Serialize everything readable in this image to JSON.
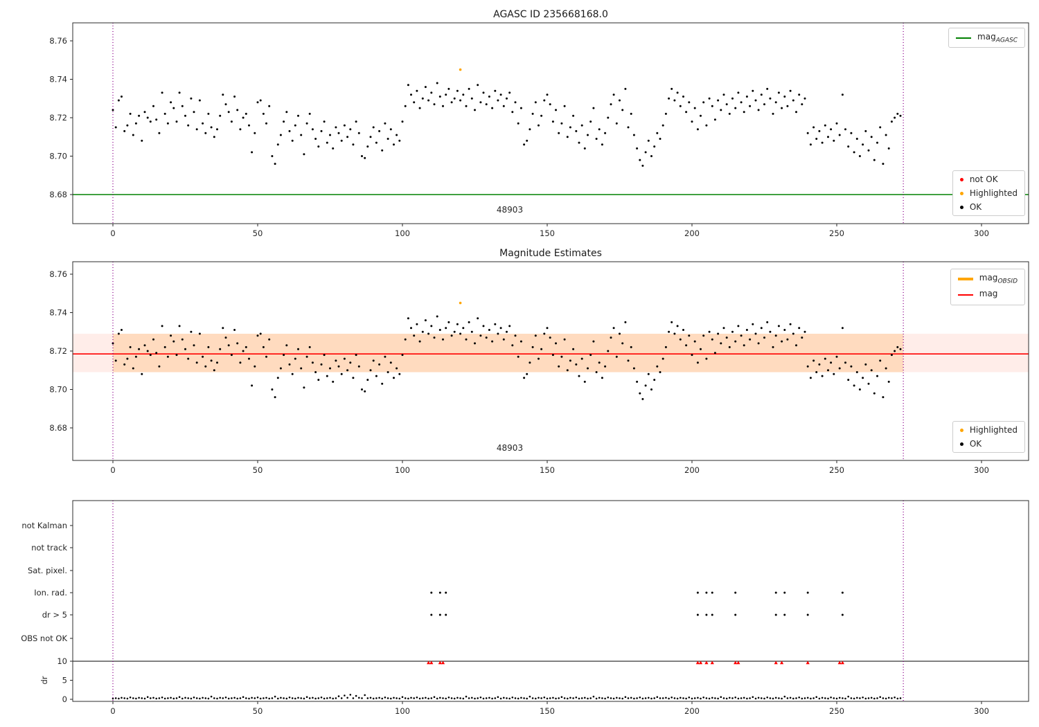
{
  "figure": {
    "plot1_title": "AGASC ID 235668168.0",
    "plot2_title": "Magnitude Estimates",
    "obsid_label": "48903"
  },
  "plot1": {
    "legend_mag": {
      "main": "mag",
      "sub": "AGASC",
      "color": "#008000"
    },
    "status_legend": [
      {
        "label": "not OK",
        "color": "#ff0000"
      },
      {
        "label": "Highlighted",
        "color": "#ffa500"
      },
      {
        "label": "OK",
        "color": "#000000"
      }
    ]
  },
  "plot2": {
    "line_legend": [
      {
        "main": "mag",
        "sub": "OBSID",
        "color": "#ffa500",
        "thick": true
      },
      {
        "main": "mag",
        "sub": "",
        "color": "#ff0000",
        "thick": false
      }
    ],
    "status_legend": [
      {
        "label": "Highlighted",
        "color": "#ffa500"
      },
      {
        "label": "OK",
        "color": "#000000"
      }
    ]
  },
  "chart_data": {
    "type": "scatter",
    "title": "AGASC ID 235668168.0",
    "subplot2_title": "Magnitude Estimates",
    "obsid": "48903",
    "xticks": [
      0,
      50,
      100,
      150,
      200,
      250,
      300
    ],
    "xlim": [
      -14,
      316
    ],
    "mag_yticks": [
      8.76,
      8.74,
      8.72,
      8.7,
      8.68
    ],
    "mag_ylim": [
      8.665,
      8.77
    ],
    "mag_base": 8.72,
    "x_start": 0,
    "x_step": 1,
    "mag_agasc": 8.68,
    "mag_mean": 8.7185,
    "mag_err_band": [
      8.709,
      8.729
    ],
    "obsid_range": [
      0,
      273
    ],
    "highlighted": {
      "x": 120,
      "mag": 8.745
    },
    "mag_offsets_milli": [
      4,
      -5,
      9,
      11,
      -7,
      -4,
      2,
      -9,
      -3,
      1,
      -12,
      3,
      0,
      -2,
      6,
      -1,
      -8,
      13,
      2,
      -3,
      8,
      5,
      -2,
      13,
      6,
      1,
      -4,
      10,
      3,
      -6,
      9,
      -3,
      -8,
      2,
      -5,
      -10,
      -6,
      1,
      12,
      7,
      3,
      -2,
      11,
      4,
      -6,
      0,
      2,
      -4,
      -18,
      -8,
      8,
      9,
      2,
      -3,
      6,
      -20,
      -24,
      -14,
      -9,
      -2,
      3,
      -7,
      -12,
      -4,
      1,
      -9,
      -19,
      -3,
      2,
      -6,
      -11,
      -15,
      -7,
      -2,
      -13,
      -9,
      -16,
      -5,
      -8,
      -12,
      -4,
      -10,
      -6,
      -14,
      -2,
      -8,
      -20,
      -21,
      -15,
      -10,
      -5,
      -13,
      -7,
      -17,
      -3,
      -11,
      -6,
      -14,
      -9,
      -12,
      -2,
      6,
      17,
      12,
      8,
      14,
      5,
      10,
      16,
      9,
      13,
      7,
      18,
      11,
      6,
      12,
      15,
      8,
      10,
      14,
      9,
      12,
      6,
      15,
      10,
      4,
      17,
      8,
      13,
      7,
      11,
      5,
      14,
      9,
      12,
      6,
      10,
      13,
      3,
      8,
      -3,
      5,
      -14,
      -12,
      -6,
      2,
      8,
      -4,
      1,
      9,
      12,
      7,
      -2,
      4,
      -8,
      -3,
      6,
      -10,
      -5,
      1,
      -7,
      -13,
      -4,
      -16,
      -9,
      -2,
      5,
      -11,
      -6,
      -14,
      -8,
      0,
      7,
      12,
      -3,
      9,
      4,
      15,
      -5,
      2,
      -9,
      -16,
      -22,
      -25,
      -18,
      -12,
      -20,
      -15,
      -8,
      -11,
      -4,
      2,
      10,
      15,
      9,
      13,
      6,
      11,
      3,
      8,
      -2,
      5,
      -6,
      1,
      8,
      -4,
      10,
      6,
      -1,
      9,
      4,
      12,
      7,
      2,
      10,
      5,
      13,
      8,
      3,
      11,
      6,
      14,
      9,
      4,
      12,
      7,
      15,
      10,
      2,
      8,
      13,
      5,
      11,
      6,
      14,
      9,
      3,
      12,
      7,
      10,
      -8,
      -14,
      -5,
      -11,
      -7,
      -13,
      -4,
      -10,
      -6,
      -12,
      -3,
      -9,
      12,
      -6,
      -15,
      -8,
      -18,
      -11,
      -20,
      -14,
      -7,
      -17,
      -10,
      -22,
      -13,
      -5,
      -24,
      -9,
      -16,
      -2,
      0,
      2,
      1
    ],
    "flag_categories": [
      "not Kalman",
      "not track",
      "Sat. pixel.",
      "Ion. rad.",
      "dr > 5",
      "OBS not OK"
    ],
    "dr_yticks": [
      10,
      5,
      0
    ],
    "dr_ylabel": "dr",
    "flags": {
      "ion_rad": [
        110,
        113,
        115,
        202,
        205,
        207,
        215,
        229,
        232,
        240,
        252
      ],
      "dr_gt5": [
        110,
        113,
        115,
        202,
        205,
        207,
        215,
        229,
        232,
        240,
        252
      ],
      "dr_over_10": [
        109,
        110,
        113,
        114,
        202,
        203,
        205,
        207,
        215,
        216,
        229,
        231,
        240,
        251,
        252
      ]
    },
    "dr_deci": [
      2,
      3,
      2,
      4,
      3,
      2,
      5,
      3,
      2,
      4,
      3,
      2,
      6,
      3,
      4,
      2,
      3,
      5,
      2,
      3,
      4,
      2,
      3,
      6,
      2,
      4,
      3,
      2,
      5,
      3,
      2,
      4,
      3,
      2,
      7,
      3,
      2,
      4,
      3,
      5,
      2,
      3,
      4,
      2,
      3,
      6,
      3,
      2,
      4,
      3,
      5,
      2,
      3,
      4,
      2,
      3,
      7,
      2,
      4,
      3,
      2,
      5,
      3,
      2,
      4,
      3,
      2,
      6,
      3,
      4,
      2,
      3,
      5,
      2,
      3,
      4,
      2,
      3,
      8,
      3,
      10,
      4,
      12,
      3,
      9,
      4,
      3,
      11,
      3,
      4,
      2,
      3,
      4,
      2,
      5,
      3,
      2,
      4,
      3,
      2,
      6,
      3,
      2,
      4,
      3,
      5,
      2,
      3,
      4,
      2,
      3,
      6,
      2,
      4,
      3,
      2,
      5,
      3,
      2,
      4,
      3,
      2,
      7,
      3,
      4,
      2,
      3,
      5,
      2,
      3,
      4,
      2,
      3,
      6,
      2,
      4,
      3,
      2,
      5,
      3,
      2,
      4,
      3,
      2,
      7,
      3,
      2,
      4,
      3,
      5,
      2,
      3,
      4,
      2,
      3,
      6,
      3,
      2,
      4,
      3,
      5,
      2,
      3,
      4,
      2,
      3,
      7,
      2,
      4,
      3,
      2,
      5,
      3,
      2,
      4,
      3,
      2,
      6,
      3,
      4,
      2,
      3,
      5,
      2,
      3,
      4,
      2,
      3,
      6,
      3,
      3,
      4,
      2,
      5,
      3,
      2,
      4,
      3,
      2,
      5,
      2,
      3,
      4,
      2,
      5,
      3,
      2,
      4,
      3,
      2,
      6,
      3,
      2,
      4,
      3,
      5,
      2,
      3,
      4,
      2,
      3,
      6,
      2,
      4,
      3,
      2,
      5,
      3,
      2,
      4,
      3,
      2,
      7,
      3,
      4,
      2,
      3,
      5,
      2,
      3,
      4,
      2,
      3,
      6,
      2,
      4,
      3,
      2,
      5,
      3,
      2,
      4,
      3,
      2,
      7,
      3,
      2,
      4,
      3,
      5,
      2,
      3,
      4,
      2,
      3,
      6,
      3,
      2,
      4,
      3,
      5,
      2,
      3
    ],
    "colors": {
      "mag_agasc_line": "#008000",
      "mag_line": "#ff0000",
      "highlight": "#ffa500",
      "ok_point": "#000000",
      "not_ok": "#ff0000",
      "obsid_marker": "#8b008b",
      "band_outer": "rgba(255,80,40,0.10)",
      "band_inner": "rgba(255,140,0,0.18)"
    }
  }
}
